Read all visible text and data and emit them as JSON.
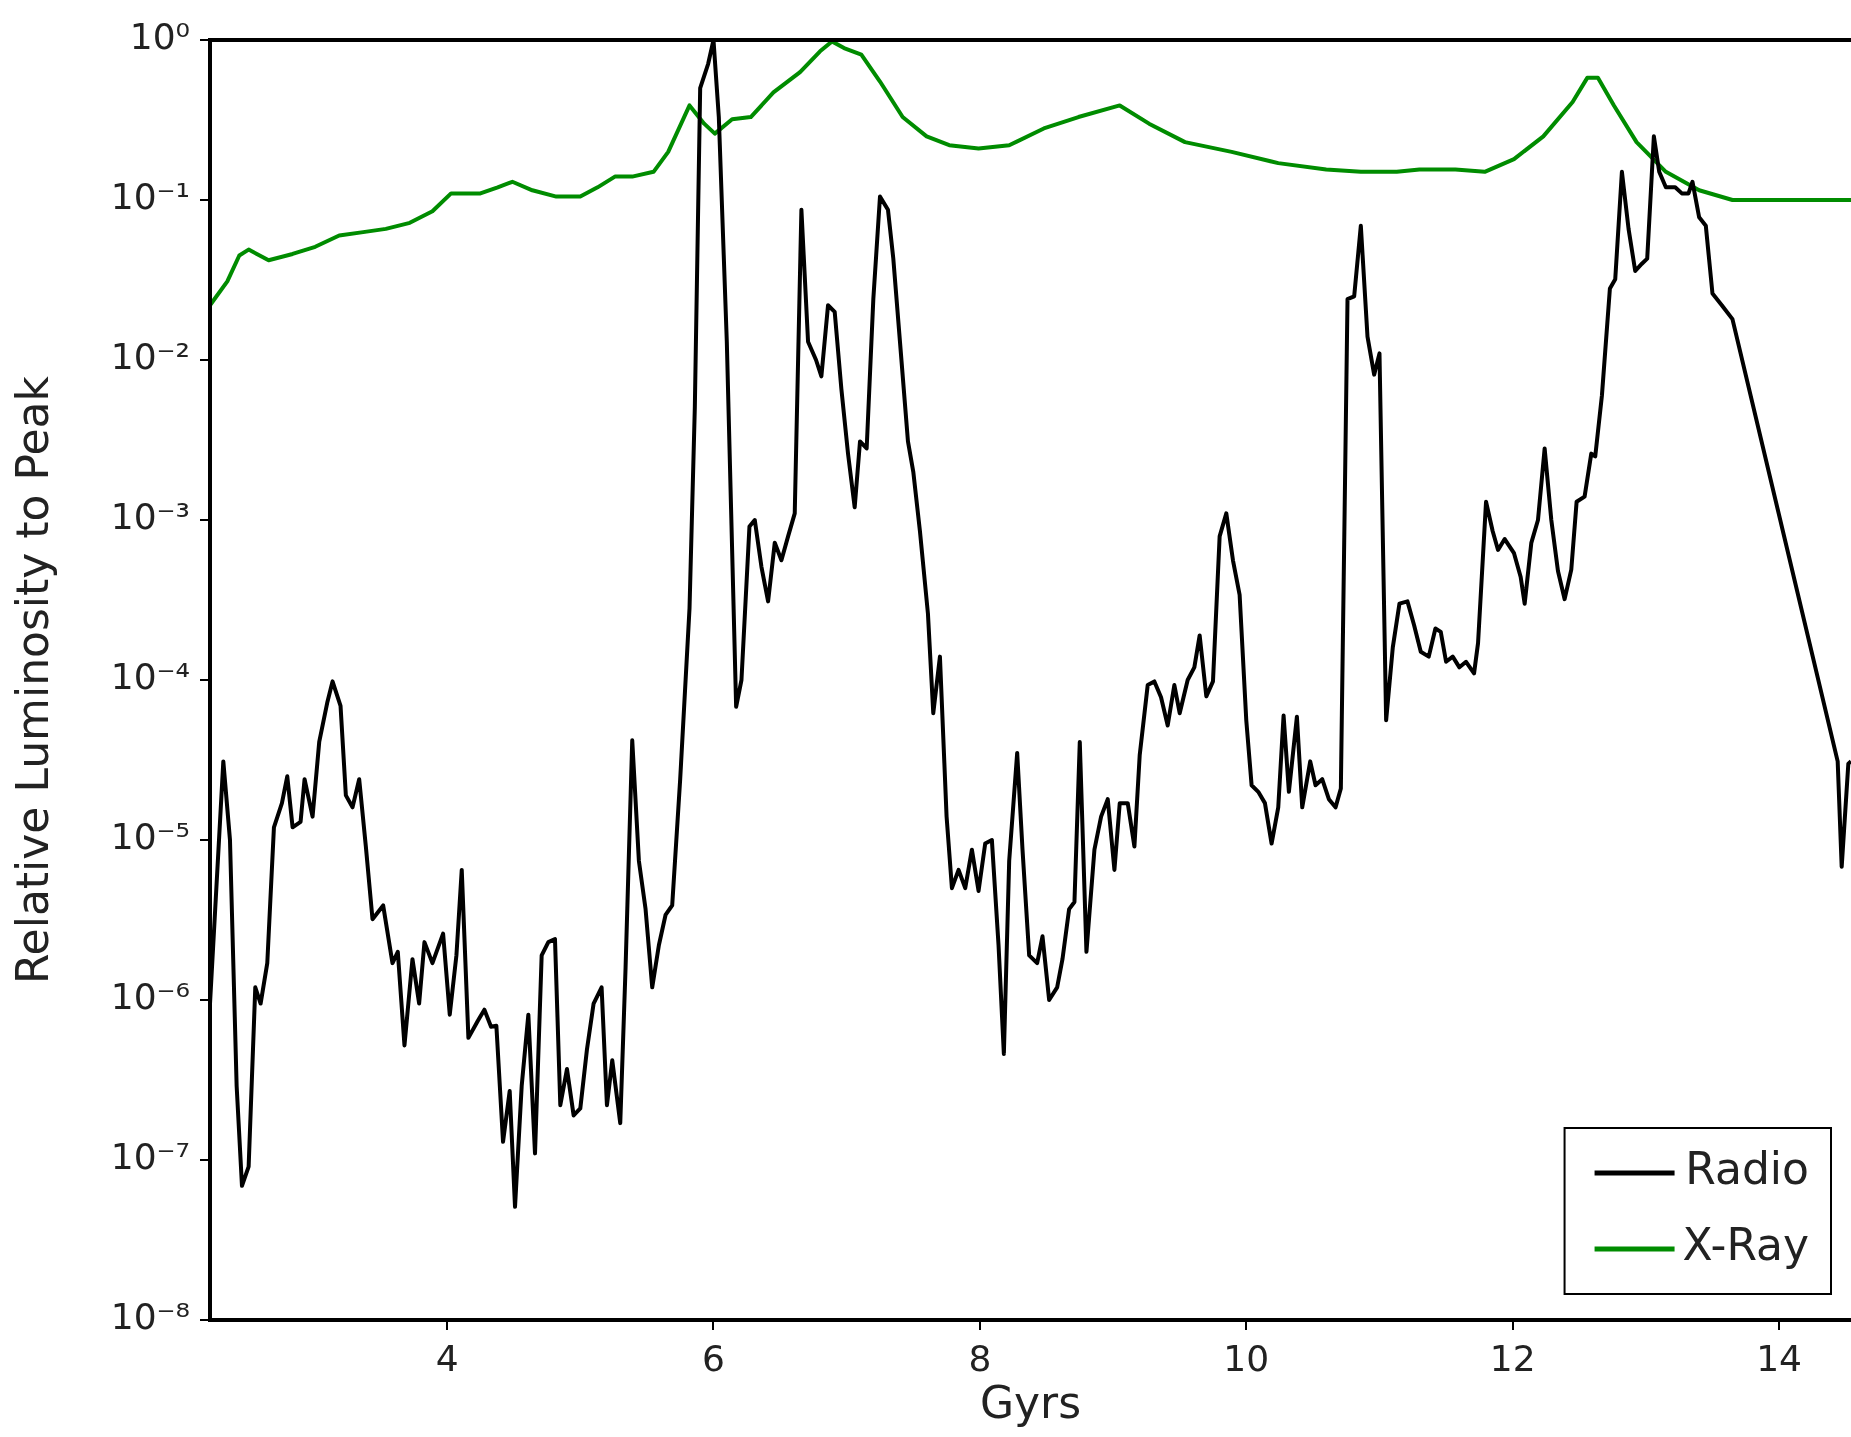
{
  "chart_data": {
    "type": "line",
    "xlabel": "Gyrs",
    "ylabel": "Relative Luminosity to Peak",
    "log": "y",
    "grid": false,
    "legend": "bottom right",
    "marker": "none",
    "line_style": "solid",
    "xlim": [
      2.22,
      14.54
    ],
    "xticks": [
      4,
      6,
      8,
      10,
      12,
      14
    ],
    "ylim": [
      1e-08,
      1
    ],
    "yticks": [
      {
        "value": 1e-08,
        "label": "10⁻⁸"
      },
      {
        "value": 1e-07,
        "label": "10⁻⁷"
      },
      {
        "value": 1e-06,
        "label": "10⁻⁶"
      },
      {
        "value": 1e-05,
        "label": "10⁻⁵"
      },
      {
        "value": 0.0001,
        "label": "10⁻⁴"
      },
      {
        "value": 0.001,
        "label": "10⁻³"
      },
      {
        "value": 0.01,
        "label": "10⁻²"
      },
      {
        "value": 0.1,
        "label": "10⁻¹"
      },
      {
        "value": 1,
        "label": "10⁰"
      }
    ],
    "series": [
      {
        "name": "Radio",
        "color": "#000000",
        "x": [
          2.22,
          2.32,
          2.37,
          2.42,
          2.46,
          2.51,
          2.56,
          2.6,
          2.65,
          2.7,
          2.76,
          2.8,
          2.84,
          2.9,
          2.93,
          2.99,
          3.04,
          3.1,
          3.14,
          3.2,
          3.24,
          3.29,
          3.34,
          3.39,
          3.44,
          3.52,
          3.59,
          3.63,
          3.68,
          3.74,
          3.79,
          3.83,
          3.89,
          3.97,
          4.02,
          4.07,
          4.11,
          4.16,
          4.23,
          4.28,
          4.33,
          4.37,
          4.42,
          4.47,
          4.51,
          4.56,
          4.61,
          4.66,
          4.71,
          4.76,
          4.81,
          4.85,
          4.9,
          4.95,
          5.0,
          5.05,
          5.1,
          5.16,
          5.2,
          5.24,
          5.3,
          5.34,
          5.39,
          5.44,
          5.49,
          5.54,
          5.59,
          5.64,
          5.69,
          5.75,
          5.82,
          5.86,
          5.9,
          5.96,
          6.0,
          6.04,
          6.1,
          6.17,
          6.21,
          6.27,
          6.31,
          6.36,
          6.41,
          6.46,
          6.51,
          6.56,
          6.61,
          6.66,
          6.71,
          6.77,
          6.81,
          6.86,
          6.91,
          6.96,
          7.01,
          7.06,
          7.1,
          7.15,
          7.2,
          7.25,
          7.31,
          7.35,
          7.4,
          7.46,
          7.5,
          7.55,
          7.61,
          7.65,
          7.7,
          7.75,
          7.79,
          7.84,
          7.89,
          7.94,
          7.99,
          8.04,
          8.09,
          8.14,
          8.18,
          8.22,
          8.28,
          8.32,
          8.37,
          8.43,
          8.47,
          8.52,
          8.58,
          8.62,
          8.67,
          8.71,
          8.75,
          8.8,
          8.86,
          8.91,
          8.96,
          9.01,
          9.05,
          9.11,
          9.16,
          9.2,
          9.26,
          9.31,
          9.36,
          9.41,
          9.46,
          9.5,
          9.56,
          9.61,
          9.65,
          9.7,
          9.75,
          9.8,
          9.85,
          9.9,
          9.95,
          10.0,
          10.04,
          10.09,
          10.14,
          10.19,
          10.24,
          10.28,
          10.32,
          10.38,
          10.42,
          10.48,
          10.52,
          10.57,
          10.62,
          10.67,
          10.71,
          10.76,
          10.81,
          10.86,
          10.91,
          10.96,
          11.0,
          11.05,
          11.1,
          11.15,
          11.21,
          11.26,
          11.31,
          11.37,
          11.42,
          11.46,
          11.5,
          11.55,
          11.6,
          11.65,
          11.71,
          11.74,
          11.8,
          11.85,
          11.89,
          11.94,
          12.01,
          12.06,
          12.09,
          12.14,
          12.19,
          12.24,
          12.29,
          12.34,
          12.39,
          12.44,
          12.48,
          12.54,
          12.59,
          12.62,
          12.67,
          12.73,
          12.77,
          12.82,
          12.87,
          12.92,
          12.97,
          13.01,
          13.06,
          13.1,
          13.15,
          13.22,
          13.27,
          13.32,
          13.35,
          13.4,
          13.45,
          13.5,
          13.57,
          13.65,
          14.44,
          14.47,
          14.52,
          14.54
        ],
        "values": [
          9.5e-07,
          3.1e-05,
          1e-05,
          2.9e-07,
          6.9e-08,
          9.1e-08,
          1.2e-06,
          9.5e-07,
          1.7e-06,
          1.2e-05,
          1.7e-05,
          2.5e-05,
          1.2e-05,
          1.3e-05,
          2.4e-05,
          1.4e-05,
          4.1e-05,
          7.2e-05,
          9.8e-05,
          6.9e-05,
          1.9e-05,
          1.6e-05,
          2.4e-05,
          9.1e-06,
          3.2e-06,
          3.9e-06,
          1.7e-06,
          2e-06,
          5.2e-07,
          1.8e-06,
          9.5e-07,
          2.3e-06,
          1.7e-06,
          2.6e-06,
          8.1e-07,
          1.9e-06,
          6.5e-06,
          5.8e-07,
          7.4e-07,
          8.7e-07,
          6.8e-07,
          6.9e-07,
          1.3e-07,
          2.7e-07,
          5.1e-08,
          2.9e-07,
          8.1e-07,
          1.1e-07,
          1.9e-06,
          2.3e-06,
          2.4e-06,
          2.2e-07,
          3.7e-07,
          1.9e-07,
          2.1e-07,
          4.9e-07,
          9.5e-07,
          1.2e-06,
          2.2e-07,
          4.2e-07,
          1.7e-07,
          1.6e-06,
          4.2e-05,
          7.4e-06,
          3.7e-06,
          1.2e-06,
          2.2e-06,
          3.4e-06,
          3.9e-06,
          2.4e-05,
          0.00028,
          0.0051,
          0.5,
          0.71,
          1,
          0.33,
          0.013,
          6.8e-05,
          0.0001,
          0.00091,
          0.001,
          0.00051,
          0.00031,
          0.00072,
          0.00056,
          0.00079,
          0.0011,
          0.087,
          0.013,
          0.01,
          0.0079,
          0.022,
          0.02,
          0.0066,
          0.0026,
          0.0012,
          0.0031,
          0.0028,
          0.024,
          0.105,
          0.087,
          0.043,
          0.013,
          0.0031,
          0.002,
          0.00085,
          0.00026,
          6.2e-05,
          0.00014,
          1.4e-05,
          5e-06,
          6.5e-06,
          5e-06,
          8.7e-06,
          4.8e-06,
          9.5e-06,
          1e-05,
          2.2e-06,
          4.6e-07,
          7.4e-06,
          3.5e-05,
          8.7e-06,
          1.9e-06,
          1.7e-06,
          2.5e-06,
          1e-06,
          1.2e-06,
          1.8e-06,
          3.7e-06,
          4.1e-06,
          4.1e-05,
          2e-06,
          8.7e-06,
          1.4e-05,
          1.8e-05,
          6.5e-06,
          1.7e-05,
          1.7e-05,
          9.1e-06,
          3.4e-05,
          9.3e-05,
          9.8e-05,
          7.8e-05,
          5.2e-05,
          9.3e-05,
          6.2e-05,
          0.0001,
          0.00012,
          0.00019,
          7.9e-05,
          9.8e-05,
          0.00079,
          0.0011,
          0.00056,
          0.00034,
          5.6e-05,
          2.2e-05,
          2e-05,
          1.7e-05,
          9.5e-06,
          1.6e-05,
          6e-05,
          2e-05,
          5.9e-05,
          1.6e-05,
          3.1e-05,
          2.2e-05,
          2.4e-05,
          1.8e-05,
          1.6e-05,
          2.1e-05,
          0.024,
          0.025,
          0.069,
          0.014,
          0.0081,
          0.011,
          5.6e-05,
          0.00016,
          0.0003,
          0.00031,
          0.00022,
          0.00015,
          0.00014,
          0.00021,
          0.0002,
          0.00013,
          0.00014,
          0.00012,
          0.00013,
          0.00011,
          0.00017,
          0.0013,
          0.00085,
          0.00065,
          0.00076,
          0.00062,
          0.00044,
          0.0003,
          0.00072,
          0.001,
          0.0028,
          0.001,
          0.00048,
          0.00032,
          0.00049,
          0.0013,
          0.0014,
          0.0026,
          0.0025,
          0.006,
          0.028,
          0.032,
          0.15,
          0.066,
          0.036,
          0.04,
          0.043,
          0.25,
          0.15,
          0.12,
          0.12,
          0.11,
          0.11,
          0.13,
          0.078,
          0.069,
          0.026,
          0.022,
          0.018,
          3.1e-05,
          6.8e-06,
          3e-05,
          3.1e-05
        ]
      },
      {
        "name": "X-Ray",
        "color": "#008c00",
        "x": [
          2.22,
          2.35,
          2.44,
          2.51,
          2.66,
          2.84,
          3.01,
          3.19,
          3.37,
          3.54,
          3.72,
          3.89,
          4.03,
          4.25,
          4.38,
          4.49,
          4.64,
          4.82,
          5.0,
          5.13,
          5.26,
          5.39,
          5.55,
          5.66,
          5.82,
          5.93,
          6.01,
          6.14,
          6.28,
          6.45,
          6.65,
          6.8,
          6.89,
          6.98,
          7.11,
          7.25,
          7.42,
          7.6,
          7.77,
          7.99,
          8.22,
          8.48,
          8.74,
          9.05,
          9.27,
          9.54,
          9.89,
          10.24,
          10.6,
          10.86,
          11.13,
          11.3,
          11.57,
          11.79,
          12.01,
          12.23,
          12.45,
          12.56,
          12.64,
          12.76,
          12.93,
          13.15,
          13.4,
          13.65,
          14.54
        ],
        "values": [
          0.022,
          0.031,
          0.045,
          0.049,
          0.042,
          0.046,
          0.051,
          0.06,
          0.063,
          0.066,
          0.072,
          0.085,
          0.11,
          0.11,
          0.12,
          0.13,
          0.115,
          0.105,
          0.105,
          0.12,
          0.14,
          0.14,
          0.15,
          0.2,
          0.39,
          0.3,
          0.26,
          0.32,
          0.33,
          0.47,
          0.63,
          0.85,
          0.98,
          0.89,
          0.81,
          0.55,
          0.33,
          0.25,
          0.22,
          0.21,
          0.22,
          0.28,
          0.33,
          0.39,
          0.3,
          0.23,
          0.2,
          0.17,
          0.155,
          0.15,
          0.15,
          0.155,
          0.155,
          0.15,
          0.18,
          0.25,
          0.41,
          0.58,
          0.58,
          0.39,
          0.23,
          0.15,
          0.115,
          0.1,
          0.1
        ]
      }
    ]
  }
}
